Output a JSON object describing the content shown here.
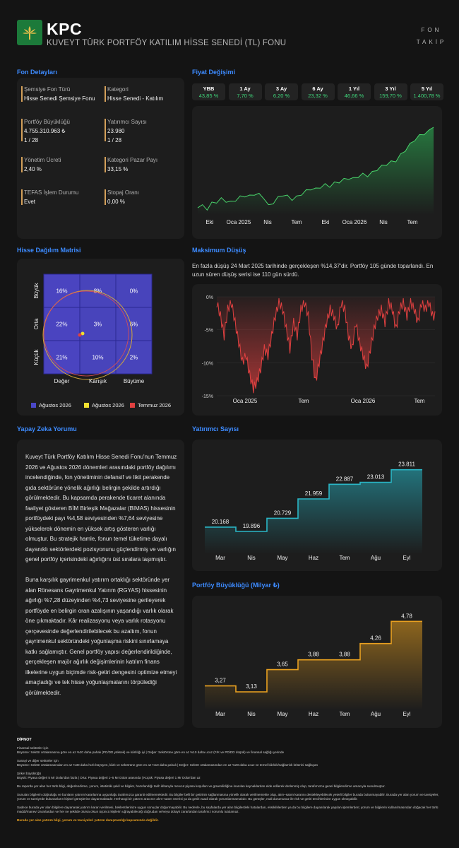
{
  "header": {
    "ticker": "KPC",
    "fund_name": "KUVEYT TÜRK PORTFÖY KATILIM HİSSE SENEDİ (TL) FONU",
    "brand_line1": "FON",
    "brand_line2": "TAKİP"
  },
  "details": {
    "title": "Fon Detayları",
    "items": [
      {
        "label": "Şemsiye Fon Türü",
        "value": "Hisse Senedi Şemsiye Fonu",
        "extra": ""
      },
      {
        "label": "Kategori",
        "value": "Hisse Senedi - Katılım",
        "extra": ""
      },
      {
        "label": "Portföy Büyüklüğü",
        "value": "4.755.310.963 ₺",
        "extra": "1 / 28"
      },
      {
        "label": "Yatırımcı Sayısı",
        "value": "23.980",
        "extra": "1 / 28"
      },
      {
        "label": "Yönetim Ücreti",
        "value": "2,40 %",
        "extra": ""
      },
      {
        "label": "Kategori Pazar Payı",
        "value": "33,15 %",
        "extra": ""
      },
      {
        "label": "TEFAS İşlem Durumu",
        "value": "Evet",
        "extra": ""
      },
      {
        "label": "Stopaj Oranı",
        "value": "0,00 %",
        "extra": ""
      }
    ]
  },
  "price": {
    "title": "Fiyat Değişimi",
    "chips": [
      {
        "label": "YBB",
        "value": "43,85 %"
      },
      {
        "label": "1 Ay",
        "value": "7,70 %"
      },
      {
        "label": "3 Ay",
        "value": "6,20 %"
      },
      {
        "label": "6 Ay",
        "value": "23,32 %"
      },
      {
        "label": "1 Yıl",
        "value": "46,66 %"
      },
      {
        "label": "3 Yıl",
        "value": "159,70 %"
      },
      {
        "label": "5 Yıl",
        "value": "1.400,78 %"
      }
    ],
    "x_ticks": [
      "Eki",
      "Oca 2025",
      "Nis",
      "Tem",
      "Eki",
      "Oca 2026",
      "Nis",
      "Tem"
    ]
  },
  "matrix": {
    "title": "Hisse Dağılım Matrisi",
    "rows": [
      "Büyük",
      "Orta",
      "Küçük"
    ],
    "cols": [
      "Değer",
      "Karışık",
      "Büyüme"
    ],
    "cells": [
      [
        "16%",
        "8%",
        "0%"
      ],
      [
        "22%",
        "3%",
        "6%"
      ],
      [
        "21%",
        "10%",
        "2%"
      ]
    ],
    "legend": [
      {
        "label": "Ağustos 2026",
        "color": "#4a47c8"
      },
      {
        "label": "Ağustos 2026",
        "color": "#f0e030"
      },
      {
        "label": "Temmuz 2026",
        "color": "#e04040"
      }
    ]
  },
  "drawdown": {
    "title": "Maksimum Düşüş",
    "description": "En fazla düşüş 24 Mart 2025 tarihinde gerçekleşen %14,37'dir. Portföy 105 günde toparlandı. En uzun süren düşüş serisi ise 110 gün sürdü.",
    "y_ticks": [
      "0%",
      "-5%",
      "-10%",
      "-15%"
    ],
    "x_ticks": [
      "Oca 2025",
      "Tem",
      "Oca 2026",
      "Tem"
    ]
  },
  "ai": {
    "title": "Yapay Zeka Yorumu",
    "p1": "Kuveyt Türk Portföy Katılım Hisse Senedi Fonu'nun Temmuz 2026 ve Ağustos 2026 dönemleri arasındaki portföy dağılımı incelendiğinde, fon yönetiminin defansif ve likit perakende gıda sektörüne yönelik ağırlığı belirgin şekilde artırdığı görülmektedir. Bu kapsamda perakende ticaret alanında faaliyet gösteren BİM Birleşik Mağazalar (BIMAS) hissesinin portföydeki payı %4,58 seviyesinden %7,64 seviyesine yükselerek dönemin en yüksek artış gösteren varlığı olmuştur. Bu stratejik hamle, fonun temel tüketime dayalı dayanıklı sektörlerdeki pozisyonunu güçlendirmiş ve varlığın genel portföy içerisindeki ağırlığını üst sıralara taşımıştır.",
    "p2": "Buna karşılık gayrimenkul yatırım ortaklığı sektöründe yer alan Rönesans Gayrimenkul Yatırım (RGYAS) hissesinin ağırlığı %7,28 düzeyinden %4,73 seviyesine gerileyerek portföyde en belirgin oran azalışının yaşandığı varlık olarak öne çıkmaktadır. Kâr realizasyonu veya varlık rotasyonu çerçevesinde değerlendirilebilecek bu azaltım, fonun gayrimenkul sektöründeki yoğunlaşma riskini sınırlamaya katkı sağlamıştır. Genel portföy yapısı değerlendirildiğinde, gerçekleşen majör ağırlık değişimlerinin katılım finans ilkelerine uygun biçimde risk-getiri dengesini optimize etmeyi amaçladığı ve tek hisse yoğunlaşmalarını törpülediği görülmektedir."
  },
  "investors": {
    "title": "Yatırımcı Sayısı",
    "months": [
      "Mar",
      "Nis",
      "May",
      "Haz",
      "Tem",
      "Ağu",
      "Eyl"
    ],
    "labels": [
      "20.168",
      "19.896",
      "20.729",
      "21.959",
      "22.887",
      "23.013",
      "23.811"
    ]
  },
  "aum": {
    "title": "Portföy Büyüklüğü (Milyar ₺)",
    "months": [
      "Mar",
      "Nis",
      "May",
      "Haz",
      "Tem",
      "Ağu",
      "Eyl"
    ],
    "labels": [
      "3,27",
      "3,13",
      "3,65",
      "3,88",
      "3,88",
      "4,26",
      "4,78"
    ]
  },
  "chart_data": [
    {
      "type": "line",
      "title": "Fiyat Değişimi",
      "x_ticks": [
        "Eki",
        "Oca 2025",
        "Nis",
        "Tem",
        "Eki",
        "Oca 2026",
        "Nis",
        "Tem"
      ],
      "values": [
        0.08,
        0.1,
        0.07,
        0.13,
        0.15,
        0.18,
        0.16,
        0.14,
        0.17,
        0.2,
        0.22,
        0.21,
        0.24,
        0.23,
        0.2,
        0.1,
        0.14,
        0.19,
        0.23,
        0.21,
        0.18,
        0.2,
        0.24,
        0.27,
        0.3,
        0.29,
        0.32,
        0.34,
        0.33,
        0.36,
        0.38,
        0.4,
        0.42,
        0.41,
        0.44,
        0.46,
        0.45,
        0.48,
        0.52,
        0.55,
        0.58,
        0.6,
        0.62,
        0.68,
        0.74,
        0.8,
        0.86,
        0.9,
        0.93,
        0.95,
        1.0
      ]
    },
    {
      "type": "area",
      "title": "Maksimum Düşüş",
      "y_ticks": [
        "0%",
        "-5%",
        "-10%",
        "-15%"
      ],
      "ylim": [
        -15,
        0
      ],
      "x_ticks": [
        "Oca 2025",
        "Tem",
        "Oca 2026",
        "Tem"
      ],
      "values": [
        -1,
        -3,
        -6,
        -2,
        -1,
        -4,
        -7,
        -10,
        -9,
        -12,
        -14,
        -13,
        -11,
        -8,
        -9,
        -6,
        -3,
        -1,
        -2,
        -5,
        -8,
        -4,
        -6,
        -2,
        -1,
        -3,
        -9,
        -13,
        -10,
        -7,
        -4,
        -2,
        -3,
        -5,
        -1,
        -2,
        -6,
        -8,
        -4,
        -7,
        -9,
        -11,
        -8,
        -5,
        -3,
        -2,
        -4,
        -1,
        -2,
        -5,
        -2,
        -1,
        -3,
        -1,
        -2,
        -4,
        -1,
        -2,
        -1,
        -3
      ]
    },
    {
      "type": "line",
      "title": "Yatırımcı Sayısı",
      "categories": [
        "Mar",
        "Nis",
        "May",
        "Haz",
        "Tem",
        "Ağu",
        "Eyl"
      ],
      "values": [
        20168,
        19896,
        20729,
        21959,
        22887,
        23013,
        23811
      ]
    },
    {
      "type": "line",
      "title": "Portföy Büyüklüğü (Milyar ₺)",
      "categories": [
        "Mar",
        "Nis",
        "May",
        "Haz",
        "Tem",
        "Ağu",
        "Eyl"
      ],
      "values": [
        3.27,
        3.13,
        3.65,
        3.88,
        3.88,
        4.26,
        4.78
      ]
    },
    {
      "type": "heatmap",
      "title": "Hisse Dağılım Matrisi",
      "rows": [
        "Büyük",
        "Orta",
        "Küçük"
      ],
      "cols": [
        "Değer",
        "Karışık",
        "Büyüme"
      ],
      "values": [
        [
          16,
          8,
          0
        ],
        [
          22,
          3,
          6
        ],
        [
          21,
          10,
          2
        ]
      ]
    }
  ],
  "footnote": {
    "title": "DİPNOT",
    "l1": "Finansal sektörler için",
    "l2": "Büyüme: Sektör ortalamasına göre en az %20 daha pahalı (PD/DD yüksek) ve kârlılığı iyi | Değer: Sektörüne göre en az %10 daha ucuz (F/K ve PD/DD düşük) ve finansal sağlığı yerinde",
    "l3": "Sanayi ve diğer sektörler için",
    "l4": "Büyüme: Sektör ortalamasından en az %30 daha hızlı büyüyen, kârlı ve sektörüne göre en az %10 daha pahalı | Değer: Sektör ortalamasından en az %20 daha ucuz ve temel kârlılık/sağlamlık kriterini sağlayan",
    "l5": "Şirket büyüklüğü",
    "l6": "Büyük: Piyasa değeri 5 Mr Dolar'dan fazla | Orta: Piyasa değeri 1–5 Mr Dolar arasında | Küçük: Piyasa değeri 1 Mr Dolar'dan az",
    "l7": "Bu raporda yer alan her türlü bilgi, değerlendirme, yorum, istatistiki şekil ve bilgiler, hazırlandığı tarih itibarıyla mevcut piyasa koşulları ve güvenilirliğine inanılan kaynaklardan elde edilerek derlenmiş olup, tarafımızca genel bilgilendirme amacıyla sunulmuştur.",
    "l8": "Sunulan bilgilerin doğruluğu ve bunların yatırım kararlarına uygunluğu tarafımızca garanti edilmemektedir. Bu bilgiler belli bir getirinin sağlanmasına yönelik olarak verilmemekte olup, alım–satım kararını destekleyebilecek yeterli bilgiler burada bulunmayabilir. Burada yer alan yorum ve tavsiyeler, yorum ve tavsiyede bulunanların kişisel görüşlerine dayanmaktadır. Herhangi bir yatırım aracının alım–satım önerisi ya da getiri vaadi olarak yorumlanmamalıdır. Bu görüşler, mali durumunuz ile risk ve getiri tercihlerinize uygun olmayabilir.",
    "l9": "Sadece burada yer alan bilgilere dayanarak yatırım kararı verilmesi, beklentilerinize uygun sonuçlar doğurmayabilir. Bu nedenle, bu sayfalarda yer alan bilgilerdeki hatalardan, eksikliklerden ya da bu bilgilere dayanılarak yapılan işlemlerden; yorum ve bilgilerin kullanılmasından doğacak her türlü maddi/manevi zararlardan ve her ne şekilde olursa olsun üçüncü kişilerin uğrayabileceği doğrudan ve/veya dolaylı zararlardan tarafımız sorumlu tutulamaz.",
    "l10": "Burada yer alan yatırım bilgi, yorum ve tavsiyeleri yatırım danışmanlığı kapsamında değildir."
  }
}
